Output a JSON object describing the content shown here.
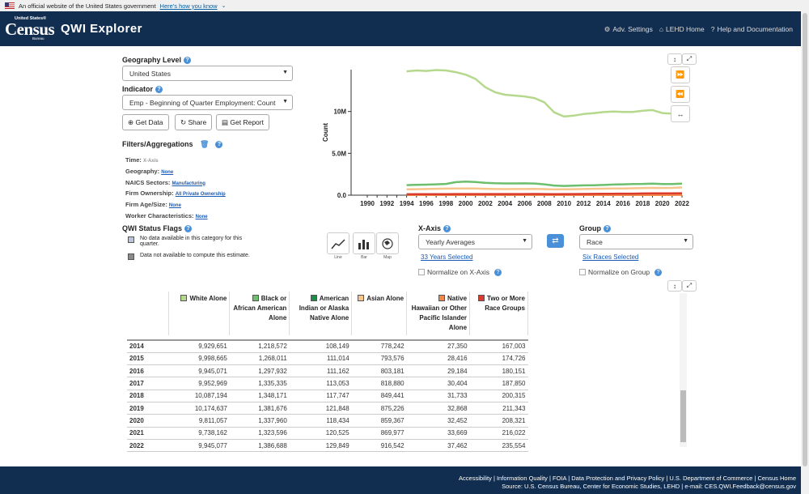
{
  "gov_banner": {
    "text": "An official website of the United States government",
    "link": "Here's how you know"
  },
  "header": {
    "logo_top": "United States®",
    "logo_main": "Census",
    "logo_bottom": "Bureau",
    "title": "QWI Explorer",
    "nav": [
      {
        "icon": "gear-icon",
        "label": "Adv. Settings"
      },
      {
        "icon": "home-icon",
        "label": "LEHD Home"
      },
      {
        "icon": "help-icon",
        "label": "Help and Documentation"
      }
    ]
  },
  "controls": {
    "geography_label": "Geography Level",
    "geography_value": "United States",
    "indicator_label": "Indicator",
    "indicator_value": "Emp - Beginning of Quarter Employment: Count",
    "buttons": {
      "get_data": "Get Data",
      "share": "Share",
      "get_report": "Get Report"
    }
  },
  "filters": {
    "title": "Filters/Aggregations",
    "items": [
      {
        "key": "Time:",
        "value": "X-Axis"
      },
      {
        "key": "Geography:",
        "value": "None"
      },
      {
        "key": "NAICS Sectors:",
        "value": "Manufacturing"
      },
      {
        "key": "Firm Ownership:",
        "value": "All Private Ownership"
      },
      {
        "key": "Firm Age/Size:",
        "value": "None"
      },
      {
        "key": "Worker Characteristics:",
        "value": "None"
      }
    ]
  },
  "status_flags": {
    "title": "QWI Status Flags",
    "items": [
      {
        "color": "#b8c6d8",
        "text": "No data available in this category for this quarter."
      },
      {
        "color": "#8a8a8a",
        "text": "Data not available to compute this estimate."
      }
    ]
  },
  "chart_types": [
    "Line",
    "Bar",
    "Map"
  ],
  "xaxis": {
    "label": "X-Axis",
    "value": "Yearly Averages",
    "link": "33 Years Selected",
    "normalize": "Normalize on X-Axis"
  },
  "group": {
    "label": "Group",
    "value": "Race",
    "link": "Six Races Selected",
    "normalize": "Normalize on Group"
  },
  "chart_data": {
    "type": "line",
    "ylabel": "Count",
    "yticks": [
      "0.0",
      "5.0M",
      "10M"
    ],
    "ylim": [
      0,
      15000000
    ],
    "x": [
      1990,
      1991,
      1992,
      1993,
      1994,
      1995,
      1996,
      1997,
      1998,
      1999,
      2000,
      2001,
      2002,
      2003,
      2004,
      2005,
      2006,
      2007,
      2008,
      2009,
      2010,
      2011,
      2012,
      2013,
      2014,
      2015,
      2016,
      2017,
      2018,
      2019,
      2020,
      2021,
      2022
    ],
    "xticks": [
      "1990",
      "1992",
      "1994",
      "1996",
      "1998",
      "2000",
      "2002",
      "2004",
      "2006",
      "2008",
      "2010",
      "2012",
      "2014",
      "2016",
      "2018",
      "2020",
      "2022"
    ],
    "series": [
      {
        "name": "White Alone",
        "color": "#b5d98c",
        "values": [
          null,
          null,
          null,
          null,
          14800000,
          14900000,
          14850000,
          14950000,
          14900000,
          14700000,
          14400000,
          13900000,
          12900000,
          12300000,
          12000000,
          11900000,
          11800000,
          11600000,
          11100000,
          9900000,
          9400000,
          9500000,
          9700000,
          9800000,
          9929651,
          9998665,
          9945071,
          9952969,
          10087194,
          10174637,
          9811057,
          9738162,
          9945077
        ]
      },
      {
        "name": "Black or African American Alone",
        "color": "#6cbf6c",
        "values": [
          null,
          null,
          null,
          null,
          1200000,
          1240000,
          1260000,
          1300000,
          1350000,
          1560000,
          1620000,
          1580000,
          1470000,
          1420000,
          1400000,
          1400000,
          1410000,
          1390000,
          1300000,
          1150000,
          1100000,
          1130000,
          1170000,
          1190000,
          1218572,
          1268011,
          1297932,
          1335335,
          1348171,
          1381676,
          1337960,
          1323596,
          1386688
        ]
      },
      {
        "name": "American Indian or Alaska Native Alone",
        "color": "#1f8a4c",
        "values": [
          null,
          null,
          null,
          null,
          100000,
          102000,
          104000,
          106000,
          108000,
          110000,
          112000,
          110000,
          105000,
          102000,
          101000,
          102000,
          103000,
          104000,
          100000,
          92000,
          95000,
          98000,
          102000,
          105000,
          108149,
          111014,
          111162,
          113053,
          117747,
          121848,
          118434,
          120525,
          129849
        ]
      },
      {
        "name": "Asian Alone",
        "color": "#f7c48c",
        "values": [
          null,
          null,
          null,
          null,
          700000,
          720000,
          740000,
          760000,
          780000,
          790000,
          800000,
          790000,
          760000,
          740000,
          730000,
          735000,
          740000,
          745000,
          730000,
          690000,
          700000,
          720000,
          740000,
          760000,
          778242,
          793576,
          803181,
          818880,
          849441,
          875226,
          859367,
          869977,
          916542
        ]
      },
      {
        "name": "Native Hawaiian or Other Pacific Islander Alone",
        "color": "#f08a4c",
        "values": [
          null,
          null,
          null,
          null,
          20000,
          21000,
          21500,
          22000,
          22500,
          23000,
          23500,
          23000,
          22500,
          22000,
          22500,
          23000,
          23500,
          24000,
          24000,
          23000,
          23500,
          24500,
          25500,
          26500,
          27350,
          28416,
          29184,
          30404,
          31733,
          32868,
          32452,
          33669,
          37462
        ]
      },
      {
        "name": "Two or More Race Groups",
        "color": "#d93a2b",
        "values": [
          null,
          null,
          null,
          null,
          110000,
          115000,
          120000,
          125000,
          130000,
          135000,
          140000,
          138000,
          135000,
          133000,
          134000,
          137000,
          140000,
          143000,
          140000,
          130000,
          135000,
          140000,
          148000,
          157000,
          167003,
          174726,
          180151,
          187850,
          200315,
          211343,
          208321,
          216022,
          235554
        ]
      }
    ]
  },
  "table": {
    "headers": [
      {
        "label": "",
        "color": ""
      },
      {
        "label": "White Alone",
        "color": "#b5d98c"
      },
      {
        "label": "Black or African American Alone",
        "color": "#6cbf6c"
      },
      {
        "label": "American Indian or Alaska Native Alone",
        "color": "#1f8a4c"
      },
      {
        "label": "Asian Alone",
        "color": "#f7c48c"
      },
      {
        "label": "Native Hawaiian or Other Pacific Islander Alone",
        "color": "#f08a4c"
      },
      {
        "label": "Two or More Race Groups",
        "color": "#d93a2b"
      }
    ],
    "rows": [
      [
        "2014",
        "9,929,651",
        "1,218,572",
        "108,149",
        "778,242",
        "27,350",
        "167,003"
      ],
      [
        "2015",
        "9,998,665",
        "1,268,011",
        "111,014",
        "793,576",
        "28,416",
        "174,726"
      ],
      [
        "2016",
        "9,945,071",
        "1,297,932",
        "111,162",
        "803,181",
        "29,184",
        "180,151"
      ],
      [
        "2017",
        "9,952,969",
        "1,335,335",
        "113,053",
        "818,880",
        "30,404",
        "187,850"
      ],
      [
        "2018",
        "10,087,194",
        "1,348,171",
        "117,747",
        "849,441",
        "31,733",
        "200,315"
      ],
      [
        "2019",
        "10,174,637",
        "1,381,676",
        "121,848",
        "875,226",
        "32,868",
        "211,343"
      ],
      [
        "2020",
        "9,811,057",
        "1,337,960",
        "118,434",
        "859,367",
        "32,452",
        "208,321"
      ],
      [
        "2021",
        "9,738,162",
        "1,323,596",
        "120,525",
        "869,977",
        "33,669",
        "216,022"
      ],
      [
        "2022",
        "9,945,077",
        "1,386,688",
        "129,849",
        "916,542",
        "37,462",
        "235,554"
      ]
    ]
  },
  "footer": {
    "line1": "Accessibility | Information Quality | FOIA | Data Protection and Privacy Policy | U.S. Department of Commerce | Census Home",
    "line2": "Source: U.S. Census Bureau, Center for Economic Studies, LEHD | e-mail: CES.QWI.Feedback@census.gov"
  }
}
